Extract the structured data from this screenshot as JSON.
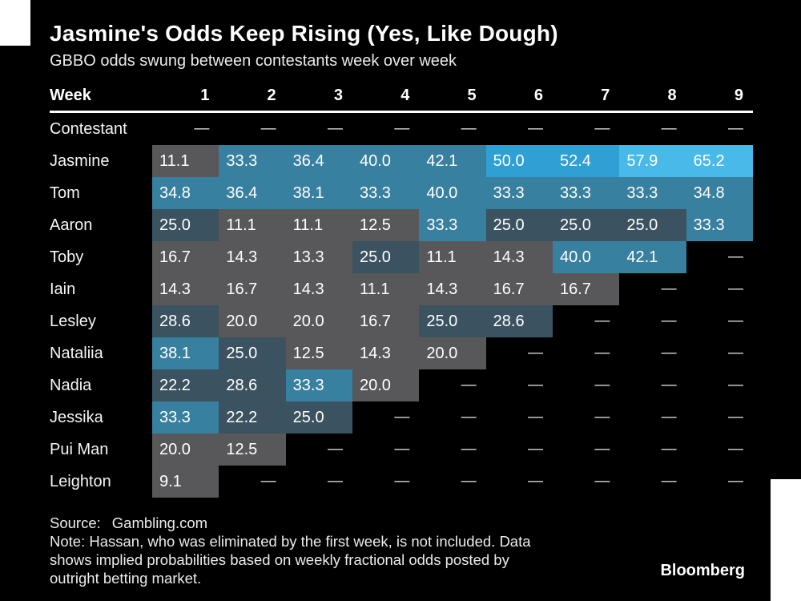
{
  "header": {
    "title": "Jasmine's Odds Keep Rising (Yes, Like Dough)",
    "subtitle": "GBBO odds swung between contestants week over week"
  },
  "table": {
    "week_label": "Week",
    "contestant_label": "Contestant",
    "weeks": [
      "1",
      "2",
      "3",
      "4",
      "5",
      "6",
      "7",
      "8",
      "9"
    ],
    "dash": "—"
  },
  "chart_data": {
    "type": "heatmap",
    "title": "Jasmine's Odds Keep Rising (Yes, Like Dough)",
    "subtitle": "GBBO odds swung between contestants week over week",
    "x_label": "Week",
    "y_label": "Contestant",
    "x": [
      1,
      2,
      3,
      4,
      5,
      6,
      7,
      8,
      9
    ],
    "rows": [
      {
        "name": "Jasmine",
        "values": [
          11.1,
          33.3,
          36.4,
          40.0,
          42.1,
          50.0,
          52.4,
          57.9,
          65.2
        ]
      },
      {
        "name": "Tom",
        "values": [
          34.8,
          36.4,
          38.1,
          33.3,
          40.0,
          33.3,
          33.3,
          33.3,
          34.8
        ]
      },
      {
        "name": "Aaron",
        "values": [
          25.0,
          11.1,
          11.1,
          12.5,
          33.3,
          25.0,
          25.0,
          25.0,
          33.3
        ]
      },
      {
        "name": "Toby",
        "values": [
          16.7,
          14.3,
          13.3,
          25.0,
          11.1,
          14.3,
          40.0,
          42.1,
          null
        ]
      },
      {
        "name": "Iain",
        "values": [
          14.3,
          16.7,
          14.3,
          11.1,
          14.3,
          16.7,
          16.7,
          null,
          null
        ]
      },
      {
        "name": "Lesley",
        "values": [
          28.6,
          20.0,
          20.0,
          16.7,
          25.0,
          28.6,
          null,
          null,
          null
        ]
      },
      {
        "name": "Nataliia",
        "values": [
          38.1,
          25.0,
          12.5,
          14.3,
          20.0,
          null,
          null,
          null,
          null
        ]
      },
      {
        "name": "Nadia",
        "values": [
          22.2,
          28.6,
          33.3,
          20.0,
          null,
          null,
          null,
          null,
          null
        ]
      },
      {
        "name": "Jessika",
        "values": [
          33.3,
          22.2,
          25.0,
          null,
          null,
          null,
          null,
          null,
          null
        ]
      },
      {
        "name": "Pui Man",
        "values": [
          20.0,
          12.5,
          null,
          null,
          null,
          null,
          null,
          null,
          null
        ]
      },
      {
        "name": "Leighton",
        "values": [
          9.1,
          null,
          null,
          null,
          null,
          null,
          null,
          null,
          null
        ]
      }
    ],
    "color_scale": [
      {
        "max": 22,
        "color": "#58585a"
      },
      {
        "max": 30,
        "color": "#3b5260"
      },
      {
        "max": 45,
        "color": "#38809f"
      },
      {
        "max": 55,
        "color": "#2f9fd4"
      },
      {
        "max": 101,
        "color": "#49b9ea"
      }
    ],
    "value_decimals": 1
  },
  "footer": {
    "source_label": "Source:",
    "source_value": "Gambling.com",
    "note_lines": [
      "Note: Hassan, who was eliminated by the first week, is not included. Data",
      "shows implied probabilities based on weekly fractional odds posted by",
      "outright betting market."
    ],
    "brand": "Bloomberg"
  }
}
